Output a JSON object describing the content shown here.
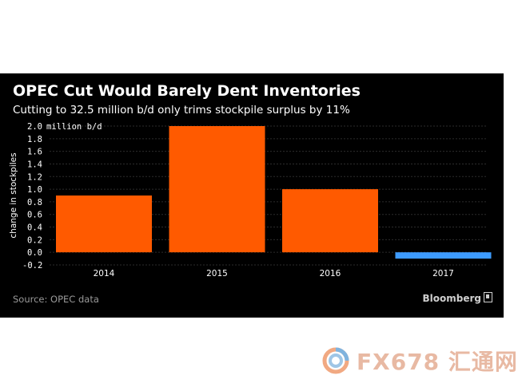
{
  "chart_data": {
    "type": "bar",
    "title": "OPEC Cut Would Barely Dent Inventories",
    "subtitle": "Cutting to 32.5 million b/d only trims stockpile surplus by 11%",
    "ylabel": "change in stockpiles",
    "yunit_label": "million b/d",
    "categories": [
      "2014",
      "2015",
      "2016",
      "2017"
    ],
    "values": [
      0.9,
      2.0,
      1.0,
      -0.1
    ],
    "colors": [
      "#ff5a00",
      "#ff5a00",
      "#ff5a00",
      "#3d9bff"
    ],
    "yticks": [
      2.0,
      1.8,
      1.6,
      1.4,
      1.2,
      1.0,
      0.8,
      0.6,
      0.4,
      0.2,
      0.0,
      -0.2
    ],
    "ylim": [
      -0.2,
      2.0
    ],
    "grid": true,
    "source": "Source: OPEC data",
    "brand": "Bloomberg"
  },
  "watermark": {
    "text": "FX678 汇通网"
  }
}
